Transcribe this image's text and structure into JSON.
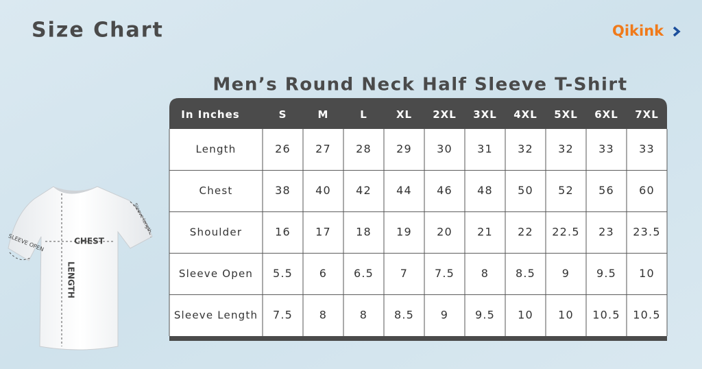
{
  "header": {
    "title": "Size Chart",
    "logo": "Qikink"
  },
  "table": {
    "title": "Men’s Round Neck Half Sleeve T-Shirt",
    "columns": [
      "In Inches",
      "S",
      "M",
      "L",
      "XL",
      "2XL",
      "3XL",
      "4XL",
      "5XL",
      "6XL",
      "7XL"
    ],
    "rows": [
      [
        "Length",
        "26",
        "27",
        "28",
        "29",
        "30",
        "31",
        "32",
        "32",
        "33",
        "33"
      ],
      [
        "Chest",
        "38",
        "40",
        "42",
        "44",
        "46",
        "48",
        "50",
        "52",
        "56",
        "60"
      ],
      [
        "Shoulder",
        "16",
        "17",
        "18",
        "19",
        "20",
        "21",
        "22",
        "22.5",
        "23",
        "23.5"
      ],
      [
        "Sleeve Open",
        "5.5",
        "6",
        "6.5",
        "7",
        "7.5",
        "8",
        "8.5",
        "9",
        "9.5",
        "10"
      ],
      [
        "Sleeve Length",
        "7.5",
        "8",
        "8",
        "8.5",
        "9",
        "9.5",
        "10",
        "10",
        "10.5",
        "10.5"
      ]
    ]
  },
  "diagram": {
    "labels": [
      "CHEST",
      "LENGTH",
      "SLEEVE OPEN",
      "Sleeve length"
    ]
  }
}
